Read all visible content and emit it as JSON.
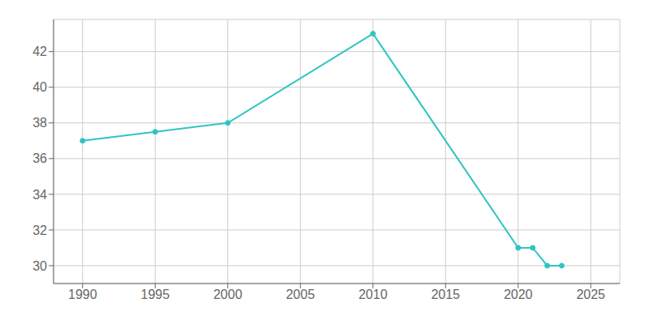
{
  "chart_data": {
    "type": "line",
    "x": [
      1990,
      1995,
      2000,
      2010,
      2020,
      2021,
      2022,
      2023
    ],
    "values": [
      37,
      37.5,
      38,
      43,
      31,
      31,
      30,
      30
    ],
    "color": "#2EC4C4",
    "xlim": [
      1988,
      2027
    ],
    "ylim": [
      29.0,
      43.8
    ],
    "xticks": [
      1990,
      1995,
      2000,
      2005,
      2010,
      2015,
      2020,
      2025
    ],
    "yticks": [
      30,
      32,
      34,
      36,
      38,
      40,
      42
    ],
    "grid": true,
    "marker": "o"
  }
}
